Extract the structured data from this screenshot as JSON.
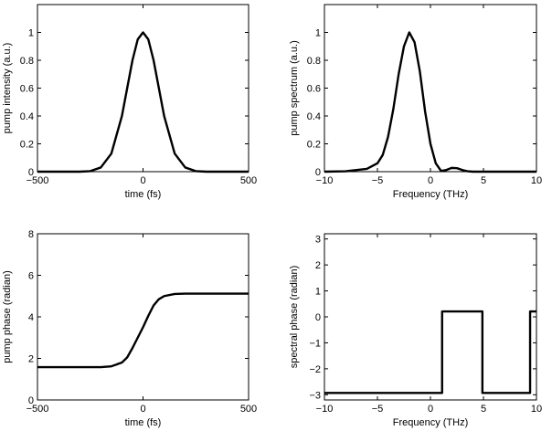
{
  "chart_data": [
    {
      "type": "line",
      "xlabel": "time (fs)",
      "ylabel": "pump intensity (a.u.)",
      "xlim": [
        -500,
        500
      ],
      "ylim": [
        0,
        1.2
      ],
      "xticks": [
        "−500",
        "0",
        "500"
      ],
      "yticks": [
        "0",
        "0.2",
        "0.4",
        "0.6",
        "0.8",
        "1"
      ],
      "series": [
        {
          "x": [
            -500,
            -300,
            -250,
            -200,
            -150,
            -100,
            -75,
            -50,
            -25,
            0,
            25,
            50,
            75,
            100,
            150,
            200,
            250,
            300,
            500
          ],
          "y": [
            0,
            0,
            0.004,
            0.03,
            0.13,
            0.4,
            0.6,
            0.8,
            0.95,
            1.0,
            0.95,
            0.8,
            0.6,
            0.4,
            0.13,
            0.03,
            0.004,
            0,
            0
          ]
        }
      ]
    },
    {
      "type": "line",
      "xlabel": "Frequency (THz)",
      "ylabel": "pump spectrum (a.u.)",
      "xlim": [
        -10,
        10
      ],
      "ylim": [
        0,
        1.2
      ],
      "xticks": [
        "−10",
        "−5",
        "0",
        "5",
        "10"
      ],
      "yticks": [
        "0",
        "0.2",
        "0.4",
        "0.6",
        "0.8",
        "1"
      ],
      "series": [
        {
          "x": [
            -10,
            -8,
            -6,
            -5,
            -4.5,
            -4,
            -3.5,
            -3,
            -2.5,
            -2,
            -1.5,
            -1,
            -0.5,
            0,
            0.5,
            1,
            1.5,
            2,
            2.5,
            3,
            3.5,
            4,
            5,
            10
          ],
          "y": [
            0,
            0.003,
            0.02,
            0.06,
            0.12,
            0.25,
            0.45,
            0.7,
            0.9,
            1.0,
            0.93,
            0.72,
            0.43,
            0.2,
            0.06,
            0.005,
            0.012,
            0.027,
            0.025,
            0.012,
            0.003,
            0,
            0,
            0
          ]
        }
      ]
    },
    {
      "type": "line",
      "xlabel": "time (fs)",
      "ylabel": "pump phase (radian)",
      "xlim": [
        -500,
        500
      ],
      "ylim": [
        0,
        8
      ],
      "xticks": [
        "−500",
        "0",
        "500"
      ],
      "yticks": [
        "0",
        "2",
        "4",
        "6",
        "8"
      ],
      "series": [
        {
          "x": [
            -500,
            -200,
            -150,
            -100,
            -75,
            -50,
            -25,
            0,
            25,
            50,
            75,
            100,
            150,
            200,
            500
          ],
          "y": [
            1.58,
            1.58,
            1.62,
            1.8,
            2.05,
            2.5,
            3.0,
            3.5,
            4.05,
            4.55,
            4.85,
            5.0,
            5.1,
            5.12,
            5.12
          ]
        }
      ]
    },
    {
      "type": "line",
      "xlabel": "Frequency (THz)",
      "ylabel": "spectral phase (radian)",
      "xlim": [
        -10,
        10
      ],
      "ylim": [
        -3.2,
        3.2
      ],
      "xticks": [
        "−10",
        "−5",
        "0",
        "5",
        "10"
      ],
      "yticks": [
        "−3",
        "−2",
        "−1",
        "0",
        "1",
        "2",
        "3"
      ],
      "series": [
        {
          "x": [
            -10,
            1.1,
            1.1,
            4.9,
            4.9,
            9.4,
            9.4,
            10
          ],
          "y": [
            -2.93,
            -2.93,
            0.21,
            0.21,
            -2.93,
            -2.93,
            0.21,
            0.21
          ]
        }
      ]
    }
  ]
}
